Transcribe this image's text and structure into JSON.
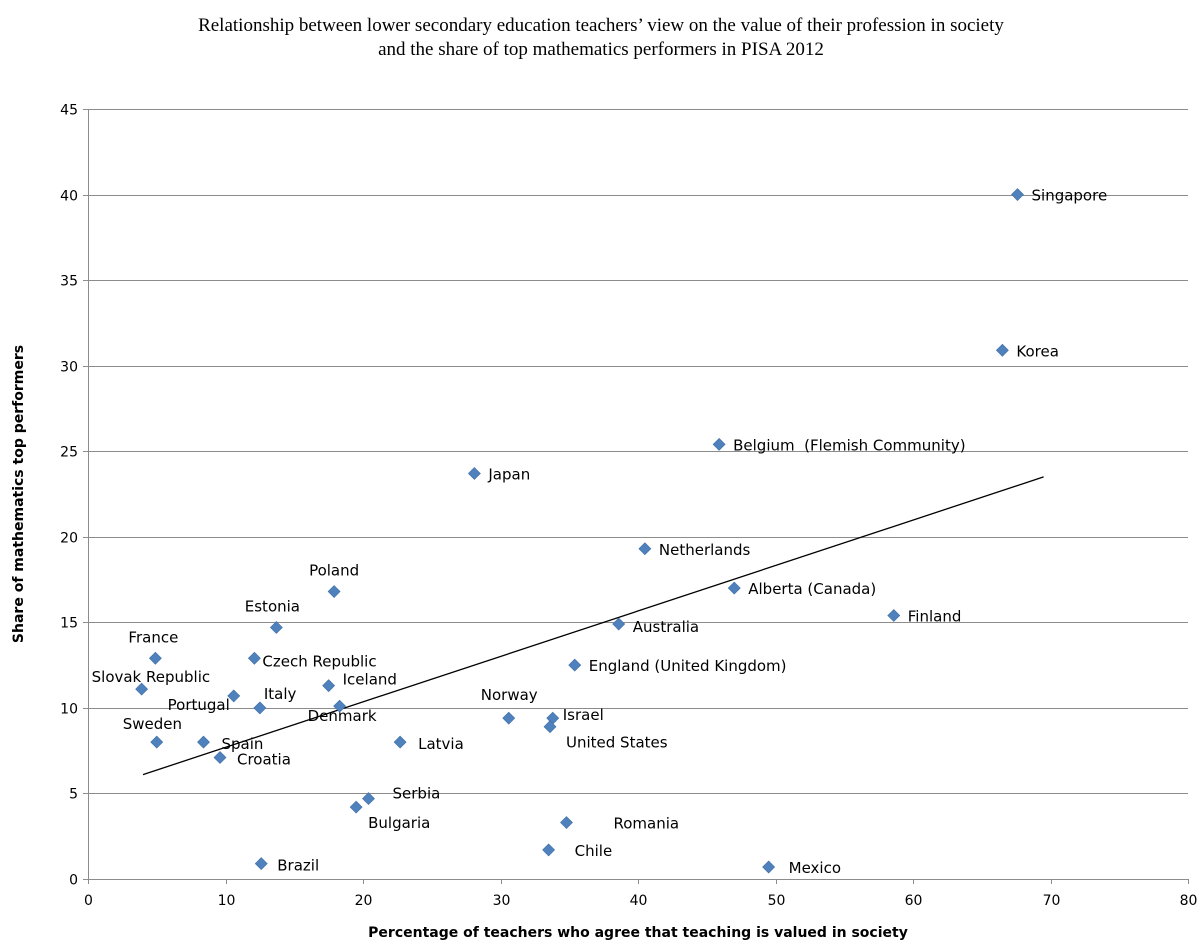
{
  "chart_data": {
    "type": "scatter",
    "title_lines": [
      "Relationship between lower secondary education teachers’ view on the value of their profession in society",
      "and the share of top mathematics performers in PISA 2012"
    ],
    "xlabel": "Percentage of teachers who agree that teaching is valued in society",
    "ylabel": "Share of mathematics top performers",
    "xlim": [
      0,
      80
    ],
    "ylim": [
      0,
      45
    ],
    "x_ticks": [
      0,
      10,
      20,
      30,
      40,
      50,
      60,
      70,
      80
    ],
    "y_ticks": [
      0,
      5,
      10,
      15,
      20,
      25,
      30,
      35,
      40,
      45
    ],
    "grid": "horizontal",
    "marker_color": "#4F81BD",
    "trendline": {
      "type": "linear",
      "x": [
        4,
        69.5
      ],
      "y": [
        6.1,
        23.5
      ],
      "color": "#000000"
    },
    "points": [
      {
        "label": "Singapore",
        "x": 67.6,
        "y": 40.0
      },
      {
        "label": "Korea",
        "x": 66.5,
        "y": 30.9
      },
      {
        "label": "Belgium  (Flemish Community)",
        "x": 45.9,
        "y": 25.4
      },
      {
        "label": "Japan",
        "x": 28.1,
        "y": 23.7
      },
      {
        "label": "Netherlands",
        "x": 40.5,
        "y": 19.3
      },
      {
        "label": "Alberta (Canada)",
        "x": 47.0,
        "y": 17.0
      },
      {
        "label": "Poland",
        "x": 17.9,
        "y": 16.8
      },
      {
        "label": "Finland",
        "x": 58.6,
        "y": 15.4
      },
      {
        "label": "Australia",
        "x": 38.6,
        "y": 14.9
      },
      {
        "label": "Estonia",
        "x": 13.7,
        "y": 14.7
      },
      {
        "label": "France",
        "x": 4.9,
        "y": 12.9
      },
      {
        "label": "Czech Republic",
        "x": 12.1,
        "y": 12.9
      },
      {
        "label": "England (United Kingdom)",
        "x": 35.4,
        "y": 12.5
      },
      {
        "label": "Iceland",
        "x": 17.5,
        "y": 11.3
      },
      {
        "label": "Slovak Republic",
        "x": 3.9,
        "y": 11.1
      },
      {
        "label": "Portugal",
        "x": 10.6,
        "y": 10.7
      },
      {
        "label": "Italy",
        "x": 12.5,
        "y": 10.0
      },
      {
        "label": "Denmark",
        "x": 18.3,
        "y": 10.1
      },
      {
        "label": "Norway",
        "x": 30.6,
        "y": 9.4
      },
      {
        "label": "Israel",
        "x": 33.8,
        "y": 9.4
      },
      {
        "label": "United States",
        "x": 33.6,
        "y": 8.9
      },
      {
        "label": "Sweden",
        "x": 5.0,
        "y": 8.0
      },
      {
        "label": "Spain",
        "x": 8.4,
        "y": 8.0
      },
      {
        "label": "Latvia",
        "x": 22.7,
        "y": 8.0
      },
      {
        "label": "Croatia",
        "x": 9.6,
        "y": 7.1
      },
      {
        "label": "Serbia",
        "x": 20.4,
        "y": 4.7
      },
      {
        "label": "Bulgaria",
        "x": 19.5,
        "y": 4.2
      },
      {
        "label": "Romania",
        "x": 34.8,
        "y": 3.3
      },
      {
        "label": "Chile",
        "x": 33.5,
        "y": 1.7
      },
      {
        "label": "Brazil",
        "x": 12.6,
        "y": 0.9
      },
      {
        "label": "Mexico",
        "x": 49.5,
        "y": 0.7
      }
    ]
  }
}
